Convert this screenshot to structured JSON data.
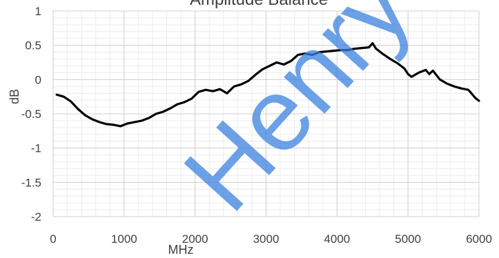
{
  "chart_data": {
    "type": "line",
    "title": "Amplitude Balance",
    "xlabel": "MHz",
    "ylabel": "dB",
    "xlim": [
      0,
      6000
    ],
    "ylim": [
      -2,
      1
    ],
    "x_ticks": [
      "0",
      "1000",
      "2000",
      "3000",
      "4000",
      "5000",
      "6000"
    ],
    "y_ticks": [
      "1",
      "0.5",
      "0",
      "-0.5",
      "-1",
      "-1.5",
      "-2"
    ],
    "grid": true,
    "legend": "none",
    "series": [
      {
        "color": "#000000",
        "x": [
          50,
          150,
          250,
          350,
          450,
          550,
          650,
          750,
          850,
          950,
          1050,
          1150,
          1250,
          1350,
          1450,
          1550,
          1650,
          1750,
          1850,
          1950,
          2050,
          2150,
          2250,
          2350,
          2450,
          2550,
          2650,
          2750,
          2850,
          2950,
          3050,
          3150,
          3250,
          3350,
          3450,
          3550,
          3650,
          3750,
          3850,
          3950,
          4050,
          4150,
          4250,
          4350,
          4450,
          4500,
          4550,
          4650,
          4750,
          4850,
          4950,
          5000,
          5050,
          5150,
          5250,
          5300,
          5350,
          5450,
          5550,
          5650,
          5750,
          5850,
          5950,
          6000
        ],
        "y": [
          -0.22,
          -0.25,
          -0.32,
          -0.43,
          -0.52,
          -0.58,
          -0.62,
          -0.65,
          -0.66,
          -0.68,
          -0.64,
          -0.62,
          -0.6,
          -0.56,
          -0.5,
          -0.47,
          -0.42,
          -0.36,
          -0.33,
          -0.28,
          -0.18,
          -0.15,
          -0.17,
          -0.14,
          -0.2,
          -0.1,
          -0.07,
          -0.02,
          0.07,
          0.15,
          0.2,
          0.25,
          0.22,
          0.27,
          0.36,
          0.38,
          0.36,
          0.4,
          0.41,
          0.42,
          0.43,
          0.43,
          0.45,
          0.46,
          0.47,
          0.53,
          0.45,
          0.37,
          0.3,
          0.24,
          0.16,
          0.08,
          0.04,
          0.1,
          0.14,
          0.08,
          0.13,
          0.0,
          -0.06,
          -0.1,
          -0.13,
          -0.15,
          -0.27,
          -0.31
        ]
      }
    ]
  },
  "watermark": {
    "text": "HenryTe",
    "color": "#3b82e0"
  }
}
